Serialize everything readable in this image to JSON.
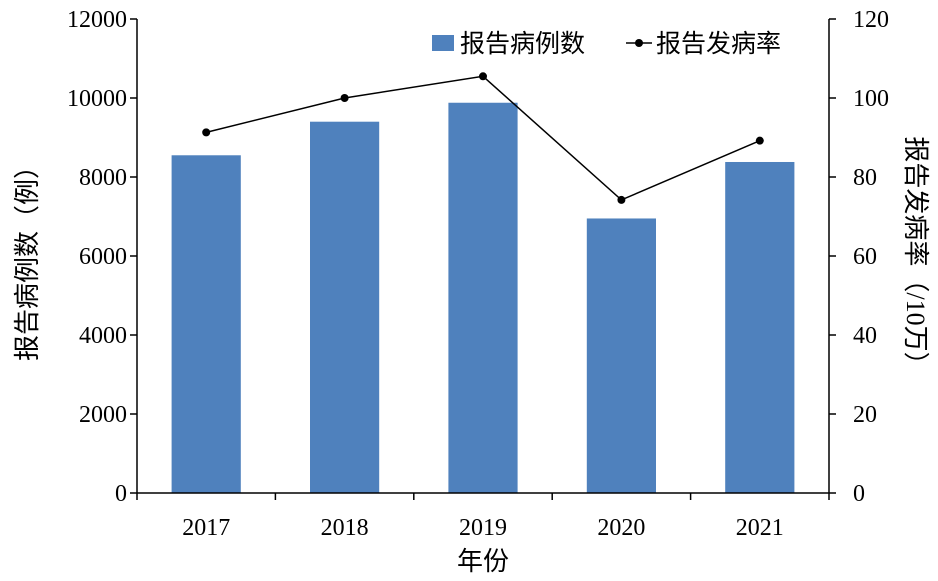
{
  "chart_data": {
    "type": "bar+line",
    "categories": [
      "2017",
      "2018",
      "2019",
      "2020",
      "2021"
    ],
    "series": [
      {
        "name": "报告病例数",
        "type": "bar",
        "axis": "left",
        "values": [
          8550,
          9400,
          9880,
          6950,
          8380
        ]
      },
      {
        "name": "报告发病率",
        "type": "line",
        "axis": "right",
        "values": [
          91.3,
          100,
          105.5,
          74.2,
          89.2
        ]
      }
    ],
    "xlabel": "年份",
    "ylabel_left": "报告病例数（例）",
    "ylabel_right": "报告发病率（/10万）",
    "ylim_left": [
      0,
      12000
    ],
    "ylim_right": [
      0,
      120
    ],
    "yticks_left": [
      "0",
      "2000",
      "4000",
      "6000",
      "8000",
      "10000",
      "12000"
    ],
    "yticks_right": [
      "0",
      "20",
      "40",
      "60",
      "80",
      "100",
      "120"
    ],
    "grid": false,
    "legend": "top-right",
    "colors": {
      "bar": "#4f81bd",
      "line": "#000000"
    }
  }
}
